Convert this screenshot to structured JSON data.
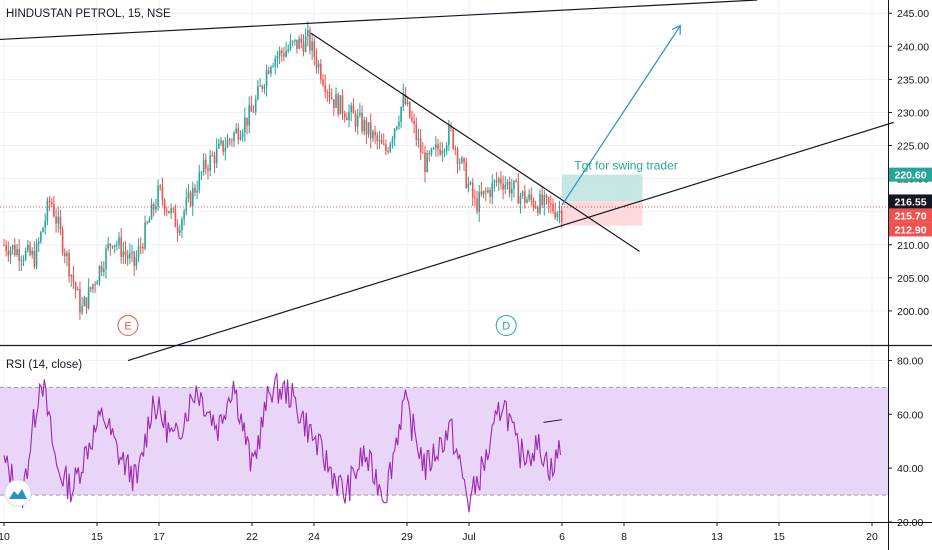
{
  "header": {
    "title": "HINDUSTAN PETROL, 15, NSE"
  },
  "colors": {
    "up": "#26a69a",
    "down": "#ef5350",
    "rsi_line": "#9c27b0",
    "rsi_band": "#e9d5f7",
    "trend_line": "#131722",
    "target_arrow": "#2196c4",
    "target_box": "#b2dfdb",
    "stop_box": "#ffcdd2",
    "label_teal": "#26a69a",
    "label_dark": "#131722",
    "label_red": "#ef5350"
  },
  "chart_data": [
    {
      "type": "candlestick",
      "title": "HINDUSTAN PETROL, 15, NSE",
      "ylim": [
        195,
        247
      ],
      "y_ticks": [
        "200.00",
        "205.00",
        "210.00",
        "215.00",
        "220.00",
        "225.00",
        "230.00",
        "235.00",
        "240.00",
        "245.00"
      ],
      "x_ticks": [
        "10",
        "15",
        "17",
        "22",
        "24",
        "29",
        "Jul",
        "6",
        "8",
        "13",
        "15",
        "20"
      ],
      "x_tick_days": [
        0,
        3,
        5,
        8,
        10,
        13,
        15,
        18,
        20,
        23,
        25,
        28
      ],
      "price_path": [
        {
          "day": 0,
          "price": 210
        },
        {
          "day": 1,
          "price": 208
        },
        {
          "day": 1.5,
          "price": 217
        },
        {
          "day": 2.5,
          "price": 200
        },
        {
          "day": 3.5,
          "price": 211
        },
        {
          "day": 4.2,
          "price": 207
        },
        {
          "day": 5,
          "price": 218
        },
        {
          "day": 5.6,
          "price": 213
        },
        {
          "day": 6.5,
          "price": 222
        },
        {
          "day": 7.3,
          "price": 226
        },
        {
          "day": 8,
          "price": 230
        },
        {
          "day": 8.6,
          "price": 238
        },
        {
          "day": 9.3,
          "price": 240
        },
        {
          "day": 9.8,
          "price": 241
        },
        {
          "day": 10.6,
          "price": 232
        },
        {
          "day": 11.6,
          "price": 228
        },
        {
          "day": 12.3,
          "price": 224
        },
        {
          "day": 12.9,
          "price": 232
        },
        {
          "day": 13.6,
          "price": 222
        },
        {
          "day": 14.4,
          "price": 227
        },
        {
          "day": 15.2,
          "price": 216
        },
        {
          "day": 16,
          "price": 220
        },
        {
          "day": 16.8,
          "price": 217
        },
        {
          "day": 18,
          "price": 215
        }
      ],
      "price_labels": [
        {
          "value": "220.60",
          "price": 220.6,
          "style": "teal"
        },
        {
          "value": "216.55",
          "price": 216.55,
          "style": "dark"
        },
        {
          "value": "215.70",
          "price": 215.7,
          "style": "red"
        },
        {
          "value": "212.90",
          "price": 212.9,
          "style": "red"
        }
      ],
      "current_price_line": 215.7,
      "trend_lines": [
        {
          "from": {
            "day": -0.3,
            "price": 241
          },
          "to": {
            "day": 24.3,
            "price": 247
          }
        },
        {
          "from": {
            "day": 4,
            "price": 192.5
          },
          "to": {
            "day": 28.7,
            "price": 228.5
          }
        },
        {
          "from": {
            "day": 9.9,
            "price": 242
          },
          "to": {
            "day": 20.5,
            "price": 209
          }
        }
      ],
      "target_arrow": {
        "from": {
          "day": 18,
          "price": 216
        },
        "to": {
          "day": 21.8,
          "price": 243
        }
      },
      "target_zone": {
        "day_from": 18,
        "day_to": 20.6,
        "price_from": 216.6,
        "price_to": 220.6
      },
      "stop_zone": {
        "day_from": 18,
        "day_to": 20.6,
        "price_from": 212.9,
        "price_to": 216.6
      },
      "annotation": {
        "text": "Tgt for swing trader",
        "day": 18.4,
        "price": 221.4
      },
      "event_markers": [
        {
          "label": "E",
          "day": 4,
          "price": 197.8,
          "color": "#ef5350"
        },
        {
          "label": "D",
          "day": 16.2,
          "price": 197.8,
          "color": "#26a69a"
        }
      ]
    },
    {
      "type": "line",
      "title": "RSI (14, close)",
      "ylim": [
        20,
        85
      ],
      "y_ticks": [
        "20.00",
        "40.00",
        "60.00",
        "80.00"
      ],
      "band": [
        30,
        70
      ],
      "series": [
        {
          "values": [
            {
              "day": 0,
              "value": 42
            },
            {
              "day": 0.6,
              "value": 30
            },
            {
              "day": 1.2,
              "value": 75
            },
            {
              "day": 1.7,
              "value": 40
            },
            {
              "day": 2.2,
              "value": 32
            },
            {
              "day": 2.7,
              "value": 48
            },
            {
              "day": 3.2,
              "value": 60
            },
            {
              "day": 3.7,
              "value": 45
            },
            {
              "day": 4.3,
              "value": 35
            },
            {
              "day": 4.8,
              "value": 65
            },
            {
              "day": 5.5,
              "value": 50
            },
            {
              "day": 6.2,
              "value": 70
            },
            {
              "day": 6.9,
              "value": 55
            },
            {
              "day": 7.4,
              "value": 72
            },
            {
              "day": 8,
              "value": 40
            },
            {
              "day": 8.6,
              "value": 70
            },
            {
              "day": 9.2,
              "value": 68
            },
            {
              "day": 9.8,
              "value": 55
            },
            {
              "day": 10.5,
              "value": 40
            },
            {
              "day": 11,
              "value": 30
            },
            {
              "day": 11.6,
              "value": 45
            },
            {
              "day": 12.3,
              "value": 30
            },
            {
              "day": 12.9,
              "value": 65
            },
            {
              "day": 13.6,
              "value": 40
            },
            {
              "day": 14.4,
              "value": 55
            },
            {
              "day": 15,
              "value": 27
            },
            {
              "day": 15.6,
              "value": 45
            },
            {
              "day": 16.1,
              "value": 66
            },
            {
              "day": 16.6,
              "value": 45
            },
            {
              "day": 17.3,
              "value": 48
            },
            {
              "day": 17.7,
              "value": 38
            },
            {
              "day": 18,
              "value": 52
            }
          ]
        }
      ]
    }
  ]
}
